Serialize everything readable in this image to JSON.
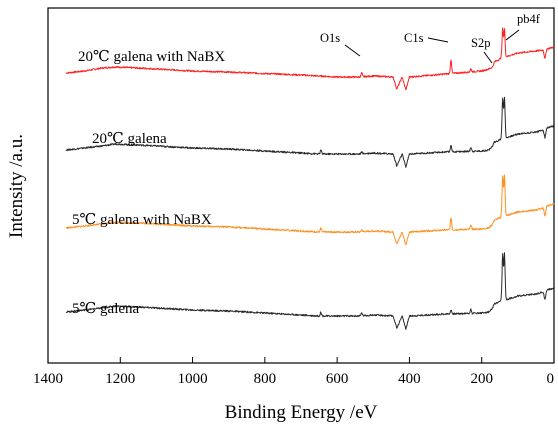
{
  "chart_data": {
    "type": "line",
    "xlabel": "Binding Energy /eV",
    "ylabel": "Intensity /a.u.",
    "xlim": [
      1400,
      0
    ],
    "x_reversed": true,
    "x_ticks": [
      1400,
      1200,
      1000,
      800,
      600,
      400,
      200,
      0
    ],
    "grid": false,
    "peak_annotations": [
      {
        "label": "O1s",
        "x": 532
      },
      {
        "label": "C1s",
        "x": 285
      },
      {
        "label": "S2p",
        "x": 161
      },
      {
        "label": "pb4f",
        "x": 138
      }
    ],
    "series": [
      {
        "name": "20℃ galena with NaBX",
        "color": "#ff2020",
        "baseline": 77,
        "base_points": [
          [
            1350,
            4
          ],
          [
            1300,
            6
          ],
          [
            1250,
            9
          ],
          [
            1215,
            10
          ],
          [
            1150,
            9
          ],
          [
            1100,
            8
          ],
          [
            1000,
            6
          ],
          [
            900,
            5
          ],
          [
            800,
            3.5
          ],
          [
            700,
            2
          ],
          [
            650,
            1
          ],
          [
            600,
            0
          ],
          [
            540,
            0
          ],
          [
            500,
            1
          ],
          [
            445,
            0
          ],
          [
            435,
            -12
          ],
          [
            420,
            0
          ],
          [
            410,
            -13
          ],
          [
            400,
            0
          ],
          [
            300,
            3
          ],
          [
            200,
            6
          ],
          [
            180,
            8
          ],
          [
            170,
            10
          ],
          [
            165,
            15
          ],
          [
            150,
            18
          ],
          [
            145,
            20
          ],
          [
            135,
            20
          ],
          [
            100,
            24
          ],
          [
            50,
            26
          ],
          [
            30,
            27
          ],
          [
            25,
            18
          ],
          [
            20,
            28
          ],
          [
            0,
            30
          ]
        ],
        "peaks": [
          {
            "x": 532,
            "h": 4
          },
          {
            "x": 285,
            "h": 14
          },
          {
            "x": 230,
            "h": 3
          },
          {
            "x": 142,
            "h": 28
          },
          {
            "x": 137,
            "h": 28
          }
        ]
      },
      {
        "name": "20℃ galena",
        "color": "#2a2a2a",
        "baseline": 154,
        "base_points": [
          [
            1350,
            4
          ],
          [
            1300,
            6
          ],
          [
            1250,
            8
          ],
          [
            1215,
            10
          ],
          [
            1150,
            9
          ],
          [
            1100,
            8
          ],
          [
            1000,
            6
          ],
          [
            900,
            5
          ],
          [
            800,
            3
          ],
          [
            700,
            1
          ],
          [
            650,
            0
          ],
          [
            600,
            0
          ],
          [
            540,
            0
          ],
          [
            500,
            1
          ],
          [
            445,
            0
          ],
          [
            435,
            -12
          ],
          [
            420,
            0
          ],
          [
            410,
            -13
          ],
          [
            400,
            0
          ],
          [
            300,
            2
          ],
          [
            200,
            3
          ],
          [
            180,
            4
          ],
          [
            170,
            8
          ],
          [
            165,
            12
          ],
          [
            150,
            14
          ],
          [
            145,
            16
          ],
          [
            135,
            16
          ],
          [
            100,
            20
          ],
          [
            50,
            22
          ],
          [
            30,
            24
          ],
          [
            25,
            16
          ],
          [
            20,
            26
          ],
          [
            0,
            28
          ]
        ],
        "peaks": [
          {
            "x": 645,
            "h": 4
          },
          {
            "x": 532,
            "h": 2
          },
          {
            "x": 285,
            "h": 7
          },
          {
            "x": 230,
            "h": 4
          },
          {
            "x": 142,
            "h": 40
          },
          {
            "x": 137,
            "h": 40
          }
        ]
      },
      {
        "name": "5℃ galena with NaBX",
        "color": "#ff9020",
        "baseline": 232,
        "base_points": [
          [
            1350,
            4
          ],
          [
            1300,
            6
          ],
          [
            1250,
            8
          ],
          [
            1215,
            10
          ],
          [
            1150,
            9
          ],
          [
            1100,
            8
          ],
          [
            1000,
            6
          ],
          [
            900,
            5
          ],
          [
            800,
            3
          ],
          [
            700,
            1
          ],
          [
            650,
            0
          ],
          [
            600,
            0
          ],
          [
            540,
            0
          ],
          [
            500,
            1
          ],
          [
            445,
            0
          ],
          [
            435,
            -12
          ],
          [
            420,
            0
          ],
          [
            410,
            -13
          ],
          [
            400,
            0
          ],
          [
            300,
            2
          ],
          [
            200,
            3
          ],
          [
            180,
            4
          ],
          [
            170,
            8
          ],
          [
            165,
            12
          ],
          [
            150,
            14
          ],
          [
            145,
            16
          ],
          [
            135,
            16
          ],
          [
            100,
            20
          ],
          [
            50,
            22
          ],
          [
            30,
            24
          ],
          [
            25,
            16
          ],
          [
            20,
            26
          ],
          [
            0,
            28
          ]
        ],
        "peaks": [
          {
            "x": 645,
            "h": 4
          },
          {
            "x": 532,
            "h": 2
          },
          {
            "x": 285,
            "h": 12
          },
          {
            "x": 230,
            "h": 4
          },
          {
            "x": 142,
            "h": 40
          },
          {
            "x": 137,
            "h": 40
          }
        ]
      },
      {
        "name": "5℃ galena",
        "color": "#2a2a2a",
        "baseline": 316,
        "base_points": [
          [
            1350,
            4
          ],
          [
            1300,
            6
          ],
          [
            1250,
            8
          ],
          [
            1215,
            10
          ],
          [
            1150,
            9
          ],
          [
            1100,
            8
          ],
          [
            1000,
            6
          ],
          [
            900,
            5
          ],
          [
            800,
            3
          ],
          [
            700,
            1
          ],
          [
            650,
            0
          ],
          [
            600,
            0
          ],
          [
            540,
            0
          ],
          [
            500,
            1
          ],
          [
            445,
            0
          ],
          [
            435,
            -12
          ],
          [
            420,
            0
          ],
          [
            410,
            -13
          ],
          [
            400,
            0
          ],
          [
            300,
            2
          ],
          [
            200,
            3
          ],
          [
            180,
            4
          ],
          [
            170,
            8
          ],
          [
            165,
            12
          ],
          [
            150,
            14
          ],
          [
            145,
            16
          ],
          [
            135,
            16
          ],
          [
            100,
            20
          ],
          [
            50,
            22
          ],
          [
            30,
            24
          ],
          [
            25,
            16
          ],
          [
            20,
            26
          ],
          [
            0,
            28
          ]
        ],
        "peaks": [
          {
            "x": 645,
            "h": 4
          },
          {
            "x": 532,
            "h": 3
          },
          {
            "x": 285,
            "h": 4
          },
          {
            "x": 230,
            "h": 4
          },
          {
            "x": 142,
            "h": 46
          },
          {
            "x": 137,
            "h": 46
          }
        ]
      }
    ]
  }
}
